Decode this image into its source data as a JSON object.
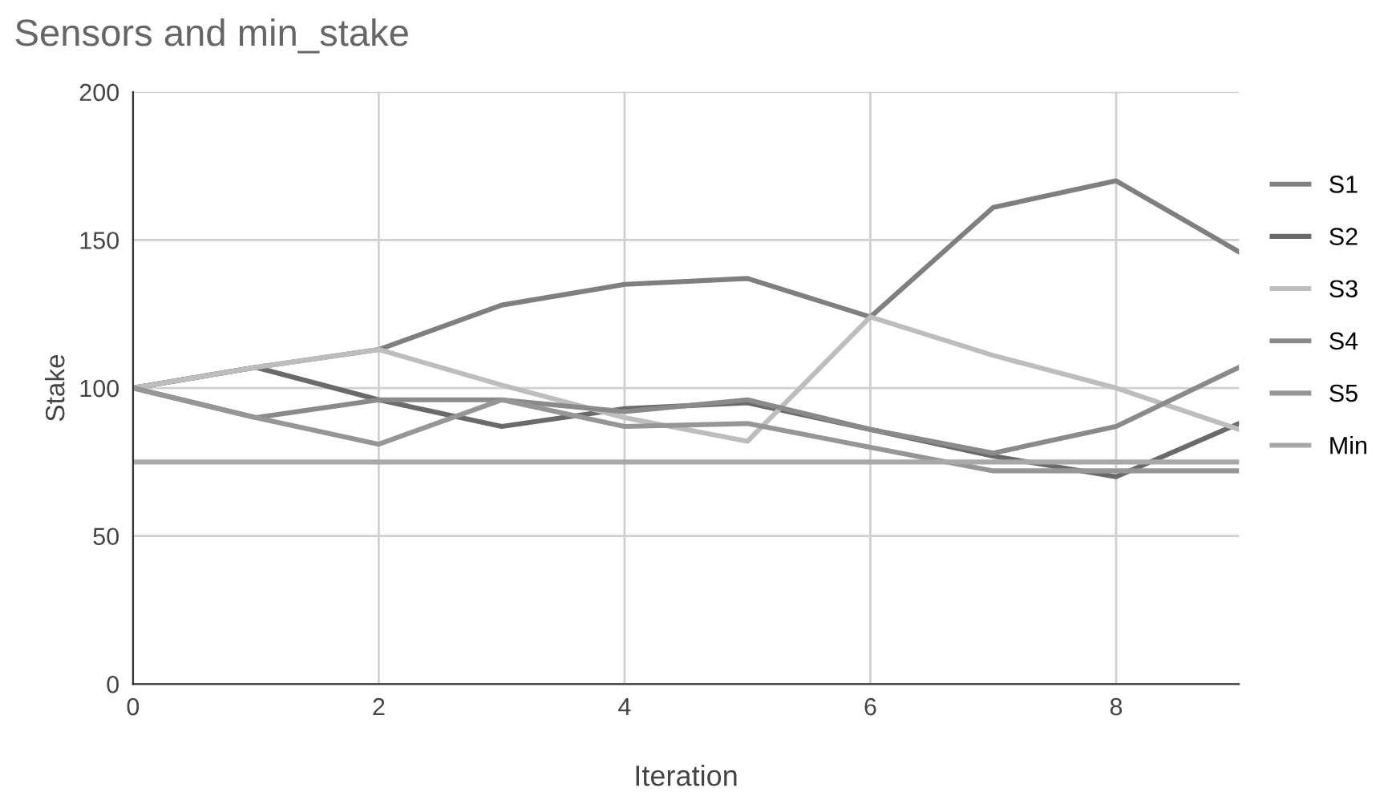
{
  "chart_data": {
    "type": "line",
    "title": "Sensors and min_stake",
    "xlabel": "Iteration",
    "ylabel": "Stake",
    "x": [
      0,
      1,
      2,
      3,
      4,
      5,
      6,
      7,
      8,
      9
    ],
    "series": [
      {
        "name": "S1",
        "color": "#7f7f7f",
        "values": [
          100,
          107,
          113,
          128,
          135,
          137,
          124,
          161,
          170,
          146
        ]
      },
      {
        "name": "S2",
        "color": "#6a6a6a",
        "values": [
          100,
          107,
          96,
          87,
          93,
          95,
          86,
          77,
          70,
          88
        ]
      },
      {
        "name": "S3",
        "color": "#bdbdbd",
        "values": [
          100,
          107,
          113,
          101,
          90,
          82,
          124,
          111,
          100,
          86
        ]
      },
      {
        "name": "S4",
        "color": "#8a8a8a",
        "values": [
          100,
          90,
          96,
          96,
          92,
          96,
          86,
          78,
          87,
          107
        ]
      },
      {
        "name": "S5",
        "color": "#969696",
        "values": [
          100,
          90,
          81,
          96,
          87,
          88,
          80,
          72,
          72,
          72
        ]
      },
      {
        "name": "Min",
        "color": "#a8a8a8",
        "values": [
          75,
          75,
          75,
          75,
          75,
          75,
          75,
          75,
          75,
          75
        ]
      }
    ],
    "xlim": [
      0,
      9
    ],
    "xticks": [
      0,
      2,
      4,
      6,
      8
    ],
    "ylim": [
      0,
      200
    ],
    "yticks": [
      0,
      50,
      100,
      150,
      200
    ],
    "grid": true,
    "legend": "right",
    "marker": "none",
    "line_style": "solid"
  }
}
